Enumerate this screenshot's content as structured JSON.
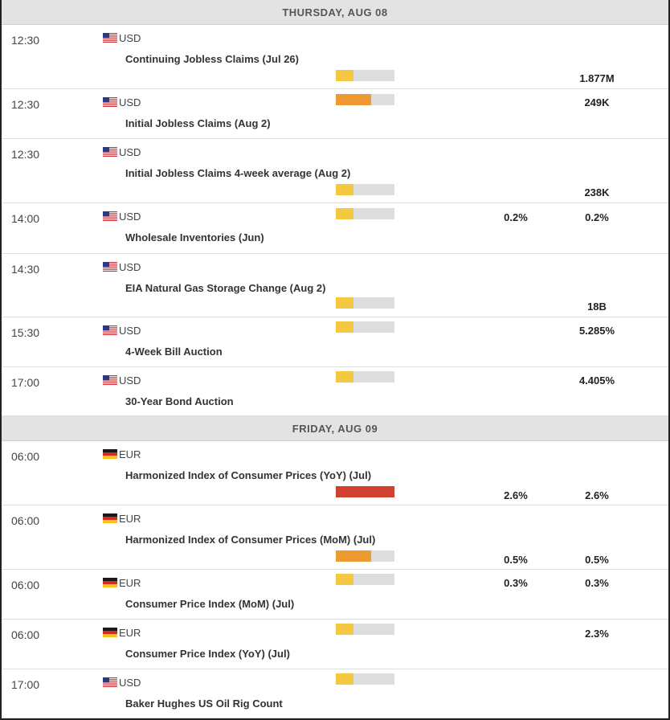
{
  "colors": {
    "low": "#f5c842",
    "medium": "#ee9a33",
    "high": "#d1402f",
    "track": "#dddddd"
  },
  "days": [
    {
      "label": "THURSDAY, AUG 08",
      "events": [
        {
          "time": "12:30",
          "flag": "us-flag-icon",
          "currency": "USD",
          "name": "Continuing Jobless Claims (Jul 26)",
          "impact": "low",
          "impact_level": 0.3,
          "previous": "",
          "forecast": "1.877M"
        },
        {
          "time": "12:30",
          "flag": "us-flag-icon",
          "currency": "USD",
          "name": "Initial Jobless Claims (Aug 2)",
          "impact": "medium",
          "impact_level": 0.6,
          "previous": "",
          "forecast": "249K"
        },
        {
          "time": "12:30",
          "flag": "us-flag-icon",
          "currency": "USD",
          "name": "Initial Jobless Claims 4-week average (Aug 2)",
          "impact": "low",
          "impact_level": 0.3,
          "previous": "",
          "forecast": "238K"
        },
        {
          "time": "14:00",
          "flag": "us-flag-icon",
          "currency": "USD",
          "name": "Wholesale Inventories (Jun)",
          "impact": "low",
          "impact_level": 0.3,
          "previous": "0.2%",
          "forecast": "0.2%"
        },
        {
          "time": "14:30",
          "flag": "us-flag-icon",
          "currency": "USD",
          "name": "EIA Natural Gas Storage Change (Aug 2)",
          "impact": "low",
          "impact_level": 0.3,
          "previous": "",
          "forecast": "18B"
        },
        {
          "time": "15:30",
          "flag": "us-flag-icon",
          "currency": "USD",
          "name": "4-Week Bill Auction",
          "impact": "low",
          "impact_level": 0.3,
          "previous": "",
          "forecast": "5.285%"
        },
        {
          "time": "17:00",
          "flag": "us-flag-icon",
          "currency": "USD",
          "name": "30-Year Bond Auction",
          "impact": "low",
          "impact_level": 0.3,
          "previous": "",
          "forecast": "4.405%"
        }
      ]
    },
    {
      "label": "FRIDAY, AUG 09",
      "events": [
        {
          "time": "06:00",
          "flag": "de-flag-icon",
          "currency": "EUR",
          "name": "Harmonized Index of Consumer Prices (YoY) (Jul)",
          "impact": "high",
          "impact_level": 1.0,
          "previous": "2.6%",
          "forecast": "2.6%"
        },
        {
          "time": "06:00",
          "flag": "de-flag-icon",
          "currency": "EUR",
          "name": "Harmonized Index of Consumer Prices (MoM) (Jul)",
          "impact": "medium",
          "impact_level": 0.6,
          "previous": "0.5%",
          "forecast": "0.5%"
        },
        {
          "time": "06:00",
          "flag": "de-flag-icon",
          "currency": "EUR",
          "name": "Consumer Price Index (MoM) (Jul)",
          "impact": "low",
          "impact_level": 0.3,
          "previous": "0.3%",
          "forecast": "0.3%"
        },
        {
          "time": "06:00",
          "flag": "de-flag-icon",
          "currency": "EUR",
          "name": "Consumer Price Index (YoY) (Jul)",
          "impact": "low",
          "impact_level": 0.3,
          "previous": "",
          "forecast": "2.3%"
        },
        {
          "time": "17:00",
          "flag": "us-flag-icon",
          "currency": "USD",
          "name": "Baker Hughes US Oil Rig Count",
          "impact": "low",
          "impact_level": 0.3,
          "previous": "",
          "forecast": ""
        }
      ]
    }
  ]
}
